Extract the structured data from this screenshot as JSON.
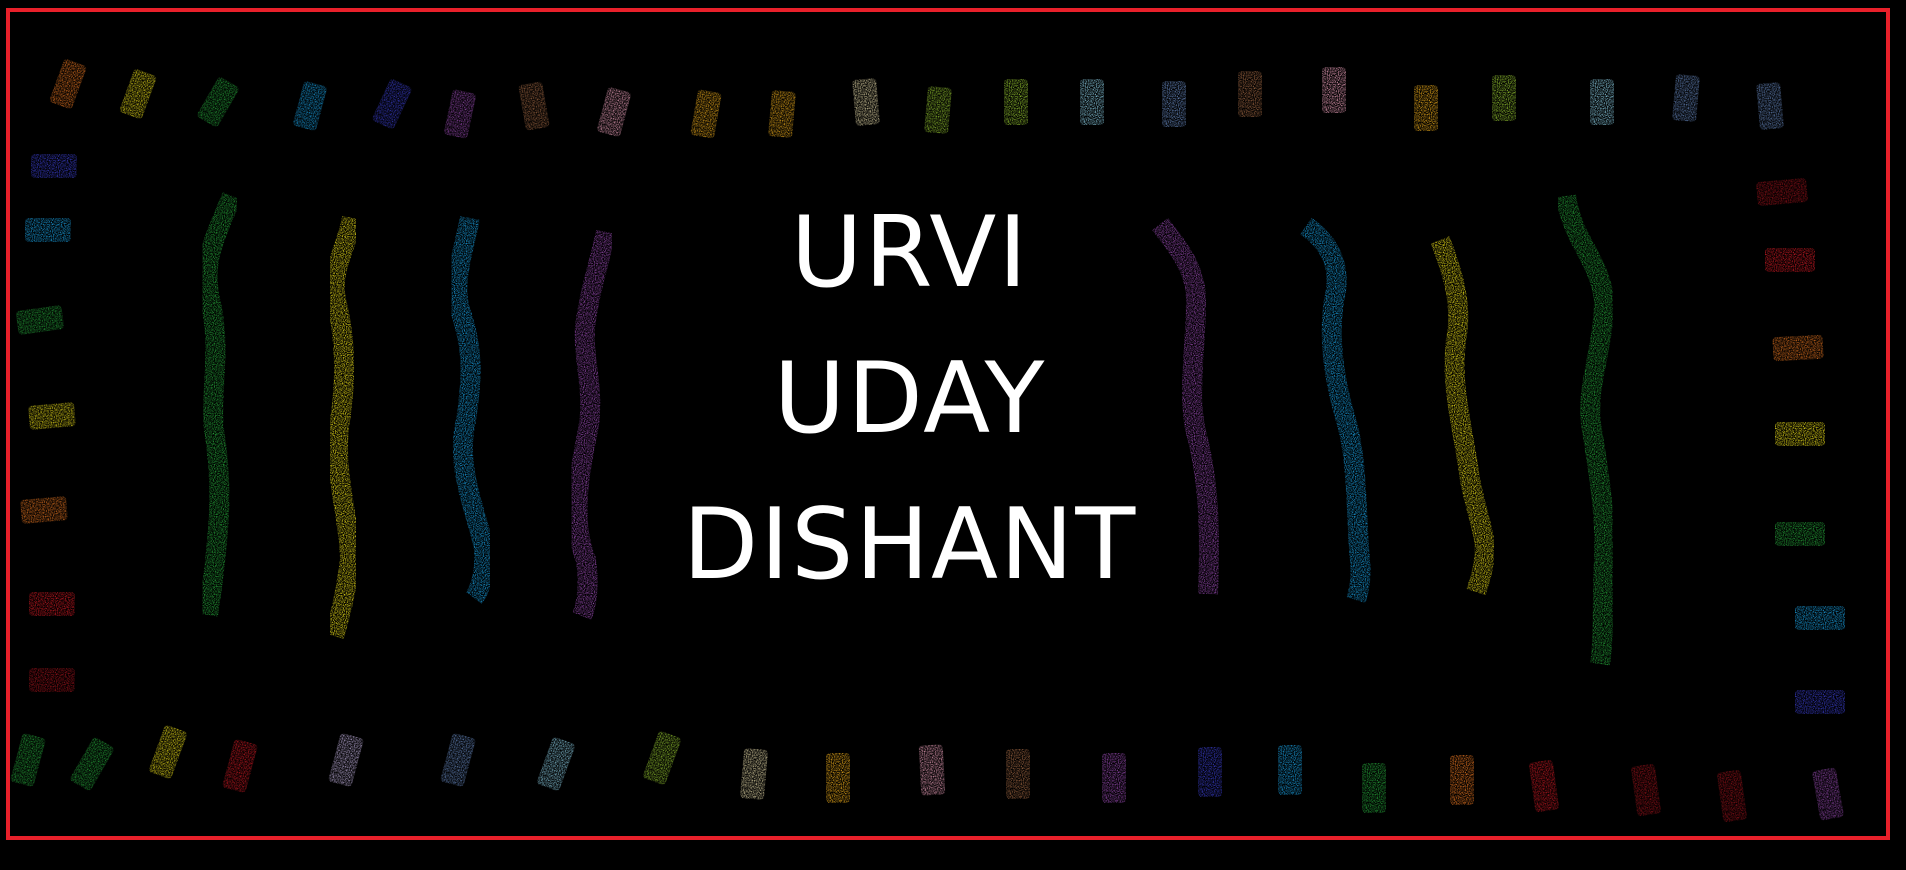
{
  "names": [
    "URVI",
    "UDAY",
    "DISHANT"
  ],
  "colors": {
    "background": "#000000",
    "frame": "#e8202a",
    "text": "#ffffff",
    "chalk_palette": [
      "#f07a22",
      "#f2e51a",
      "#26a93b",
      "#1aa3e6",
      "#3b3fd1",
      "#9a4bb4",
      "#a46a45",
      "#f5a6c2",
      "#f6b21c",
      "#efe3b0",
      "#9acd32",
      "#8fd3ea",
      "#6c8fc9",
      "#c8b7e6",
      "#d41a24",
      "#a3141c"
    ]
  },
  "icons": [
    "chalk-stick-icon",
    "chalk-squiggle-icon"
  ]
}
